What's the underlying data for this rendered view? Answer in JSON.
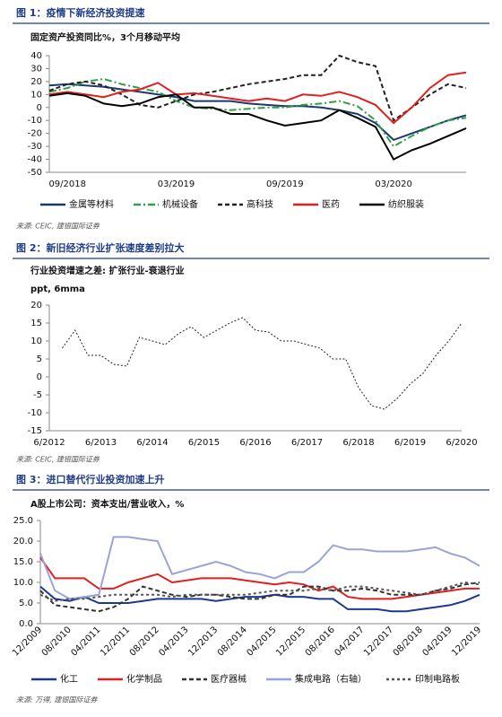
{
  "chart_data": [
    {
      "type": "line",
      "caption": "图 1：疫情下新经济投资提速",
      "title": "固定资产投资同比%，3个月移动平均",
      "source": "来源: CEIC, 建银国际证券",
      "categories": [
        null,
        "09/2018",
        null,
        null,
        null,
        null,
        null,
        "03/2019",
        null,
        null,
        null,
        null,
        null,
        "09/2019",
        null,
        null,
        null,
        null,
        null,
        "03/2020",
        null,
        null,
        null,
        null
      ],
      "ylim": [
        -50,
        40
      ],
      "yticks": [
        40,
        30,
        20,
        10,
        0,
        -10,
        -20,
        -30,
        -40,
        -50
      ],
      "grid": false,
      "series": [
        {
          "name": "金属等材料",
          "color": "#1b3a6b",
          "line_style": "solid",
          "values": [
            17,
            18,
            17,
            16,
            14,
            12,
            10,
            8,
            5,
            5,
            5,
            3,
            2,
            1,
            1,
            0,
            -2,
            -5,
            -12,
            -25,
            -20,
            -15,
            -10,
            -6
          ]
        },
        {
          "name": "机械设备",
          "color": "#2ea043",
          "line_style": "dashdot",
          "values": [
            12,
            15,
            20,
            22,
            18,
            15,
            12,
            5,
            0,
            -1,
            -2,
            -1,
            0,
            0,
            2,
            3,
            5,
            1,
            -10,
            -30,
            -22,
            -15,
            -10,
            -8
          ]
        },
        {
          "name": "高科技",
          "color": "#222222",
          "line_style": "dashed",
          "values": [
            13,
            18,
            20,
            17,
            10,
            2,
            0,
            5,
            10,
            12,
            15,
            18,
            20,
            22,
            25,
            25,
            40,
            35,
            32,
            -10,
            0,
            10,
            18,
            15
          ]
        },
        {
          "name": "医药",
          "color": "#e02020",
          "line_style": "solid",
          "values": [
            10,
            12,
            10,
            8,
            12,
            14,
            19,
            10,
            11,
            9,
            7,
            5,
            7,
            5,
            10,
            9,
            12,
            8,
            2,
            -12,
            0,
            15,
            25,
            27
          ]
        },
        {
          "name": "纺织服装",
          "color": "#000000",
          "line_style": "solid",
          "values": [
            9,
            11,
            9,
            3,
            1,
            3,
            8,
            10,
            0,
            0,
            -5,
            -5,
            -10,
            -14,
            -12,
            -10,
            -2,
            -8,
            -15,
            -40,
            -33,
            -28,
            -22,
            -16
          ]
        }
      ]
    },
    {
      "type": "line",
      "caption": "图 2：新旧经济行业扩张速度差别拉大",
      "title": "行业投资增速之差: 扩张行业-衰退行业",
      "subtitle": "ppt, 6mma",
      "source": "来源: CEIC, 建银国际证券",
      "categories": [
        "6/2012",
        null,
        null,
        null,
        "6/2013",
        null,
        null,
        null,
        "6/2014",
        null,
        null,
        null,
        "6/2015",
        null,
        null,
        null,
        "6/2016",
        null,
        null,
        null,
        "6/2017",
        null,
        null,
        null,
        "6/2018",
        null,
        null,
        null,
        "6/2019",
        null,
        null,
        null,
        "6/2020"
      ],
      "ylim": [
        -15,
        20
      ],
      "yticks": [
        20,
        15,
        10,
        5,
        0,
        -5,
        -10,
        -15
      ],
      "grid": false,
      "series": [
        {
          "name": null,
          "color": "#222222",
          "line_style": "dotted",
          "values": [
            null,
            8,
            13,
            6,
            6,
            3.5,
            3,
            11,
            10,
            9,
            12,
            14,
            11,
            13,
            15,
            16.5,
            13,
            12.5,
            10,
            10,
            9,
            8,
            5,
            5,
            -3,
            -8,
            -9,
            -6,
            -2,
            1,
            6,
            10,
            15
          ]
        }
      ]
    },
    {
      "type": "line",
      "caption": "图 3：进口替代行业投资加速上升",
      "title": "A股上市公司：资本支出/营业收入，%",
      "source": "来源: 万得, 建银国际证券",
      "categories": [
        "12/2009",
        null,
        "08/2010",
        null,
        "04/2011",
        null,
        "12/2011",
        null,
        "08/2012",
        null,
        "04/2013",
        null,
        "12/2013",
        null,
        "08/2014",
        null,
        "04/2015",
        null,
        "12/2015",
        null,
        "08/2016",
        null,
        "04/2017",
        null,
        "12/2017",
        null,
        "08/2018",
        null,
        "04/2019",
        null,
        "12/2019"
      ],
      "ylim": [
        0,
        25
      ],
      "yticks": [
        {
          "value": 25,
          "label": "25.0"
        },
        {
          "value": 20,
          "label": "20.0"
        },
        {
          "value": 15,
          "label": "15.0"
        },
        {
          "value": 10,
          "label": "10.0"
        },
        {
          "value": 5,
          "label": "5.0"
        },
        {
          "value": 0,
          "label": "0.0"
        }
      ],
      "grid": false,
      "rotate_x_labels": true,
      "series": [
        {
          "name": "化工",
          "color": "#1b3a8b",
          "line_style": "solid",
          "values": [
            9,
            6,
            5.5,
            6.5,
            5,
            5,
            5,
            5.5,
            6,
            6,
            6,
            6,
            5.5,
            6,
            6.5,
            6.5,
            7,
            6.5,
            6.5,
            6,
            6,
            3.5,
            3.5,
            3.5,
            3,
            3,
            3.5,
            4,
            4.5,
            5.5,
            7
          ]
        },
        {
          "name": "化学制品",
          "color": "#e02020",
          "line_style": "solid",
          "values": [
            16,
            11,
            11,
            11,
            8.5,
            8.5,
            10,
            11,
            12,
            10,
            10.5,
            11,
            11,
            11,
            10.5,
            10,
            9.5,
            10,
            9.5,
            8,
            9,
            6.5,
            6,
            6,
            6,
            6.5,
            7,
            7.5,
            8,
            8.5,
            8.5
          ]
        },
        {
          "name": "医疗器械",
          "color": "#333333",
          "line_style": "dashed",
          "values": [
            8,
            4.5,
            4,
            3.5,
            3,
            4,
            6,
            9,
            8,
            7,
            6.5,
            7,
            7,
            6.5,
            6,
            6,
            7,
            7,
            9,
            9,
            8,
            8,
            8.5,
            8,
            7,
            7,
            7,
            8,
            8.5,
            9.5,
            10
          ]
        },
        {
          "name": "集成电路（右轴）",
          "color": "#9aa3d8",
          "line_style": "solid",
          "values": [
            17,
            8,
            6,
            6.5,
            7,
            21,
            21,
            20.5,
            20,
            12,
            13,
            14,
            15,
            14,
            12.5,
            12,
            11,
            12.5,
            12.5,
            15,
            19,
            18,
            18,
            17.5,
            17.5,
            17.5,
            18,
            18.5,
            17,
            16,
            14
          ]
        },
        {
          "name": "印制电路板",
          "color": "#555555",
          "line_style": "fine-dashed",
          "values": [
            7,
            5.5,
            6,
            6,
            6.5,
            7,
            7,
            7,
            7,
            6.5,
            7,
            7,
            7,
            7,
            7,
            7.5,
            8,
            8,
            8,
            8.5,
            8,
            9,
            9,
            8.5,
            8,
            7.5,
            7,
            8,
            9,
            10,
            9.5
          ]
        }
      ]
    }
  ]
}
